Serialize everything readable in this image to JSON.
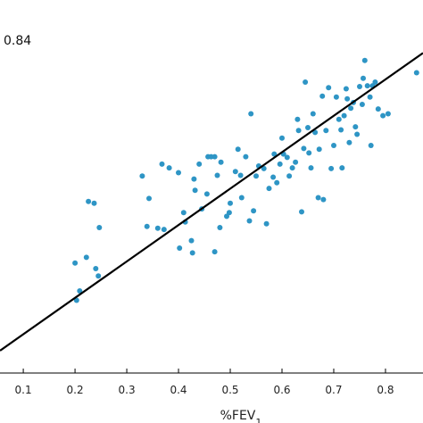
{
  "chart_data": {
    "type": "scatter",
    "xlabel": "%FEV1",
    "annotation": "0.84",
    "xlim": [
      0.055,
      0.8725
    ],
    "ylim": [
      0.0,
      1.0
    ],
    "x_ticks": [
      0.1,
      0.2,
      0.3,
      0.4,
      0.5,
      0.6,
      0.7,
      0.8
    ],
    "point_color": "#2e95c5",
    "line_color": "#000000",
    "fit_line": {
      "x": [
        0.055,
        0.8725
      ],
      "y": [
        0.06,
        0.858
      ]
    },
    "points": [
      {
        "x": 0.203,
        "y": 0.195
      },
      {
        "x": 0.209,
        "y": 0.22
      },
      {
        "x": 0.2,
        "y": 0.295
      },
      {
        "x": 0.222,
        "y": 0.31
      },
      {
        "x": 0.24,
        "y": 0.28
      },
      {
        "x": 0.245,
        "y": 0.26
      },
      {
        "x": 0.226,
        "y": 0.46
      },
      {
        "x": 0.237,
        "y": 0.455
      },
      {
        "x": 0.247,
        "y": 0.39
      },
      {
        "x": 0.33,
        "y": 0.528
      },
      {
        "x": 0.343,
        "y": 0.468
      },
      {
        "x": 0.339,
        "y": 0.393
      },
      {
        "x": 0.36,
        "y": 0.388
      },
      {
        "x": 0.372,
        "y": 0.385
      },
      {
        "x": 0.368,
        "y": 0.56
      },
      {
        "x": 0.382,
        "y": 0.55
      },
      {
        "x": 0.4,
        "y": 0.537
      },
      {
        "x": 0.402,
        "y": 0.335
      },
      {
        "x": 0.41,
        "y": 0.43
      },
      {
        "x": 0.413,
        "y": 0.405
      },
      {
        "x": 0.425,
        "y": 0.355
      },
      {
        "x": 0.427,
        "y": 0.322
      },
      {
        "x": 0.43,
        "y": 0.52
      },
      {
        "x": 0.432,
        "y": 0.49
      },
      {
        "x": 0.44,
        "y": 0.56
      },
      {
        "x": 0.445,
        "y": 0.44
      },
      {
        "x": 0.455,
        "y": 0.48
      },
      {
        "x": 0.457,
        "y": 0.58
      },
      {
        "x": 0.463,
        "y": 0.58
      },
      {
        "x": 0.47,
        "y": 0.58
      },
      {
        "x": 0.47,
        "y": 0.325
      },
      {
        "x": 0.475,
        "y": 0.53
      },
      {
        "x": 0.482,
        "y": 0.565
      },
      {
        "x": 0.48,
        "y": 0.39
      },
      {
        "x": 0.493,
        "y": 0.42
      },
      {
        "x": 0.498,
        "y": 0.43
      },
      {
        "x": 0.5,
        "y": 0.455
      },
      {
        "x": 0.51,
        "y": 0.54
      },
      {
        "x": 0.515,
        "y": 0.6
      },
      {
        "x": 0.52,
        "y": 0.53
      },
      {
        "x": 0.522,
        "y": 0.47
      },
      {
        "x": 0.53,
        "y": 0.58
      },
      {
        "x": 0.537,
        "y": 0.408
      },
      {
        "x": 0.54,
        "y": 0.695
      },
      {
        "x": 0.545,
        "y": 0.435
      },
      {
        "x": 0.55,
        "y": 0.528
      },
      {
        "x": 0.555,
        "y": 0.555
      },
      {
        "x": 0.565,
        "y": 0.548
      },
      {
        "x": 0.57,
        "y": 0.4
      },
      {
        "x": 0.575,
        "y": 0.495
      },
      {
        "x": 0.583,
        "y": 0.525
      },
      {
        "x": 0.585,
        "y": 0.587
      },
      {
        "x": 0.59,
        "y": 0.51
      },
      {
        "x": 0.596,
        "y": 0.56
      },
      {
        "x": 0.6,
        "y": 0.63
      },
      {
        "x": 0.603,
        "y": 0.587
      },
      {
        "x": 0.61,
        "y": 0.578
      },
      {
        "x": 0.614,
        "y": 0.528
      },
      {
        "x": 0.62,
        "y": 0.55
      },
      {
        "x": 0.626,
        "y": 0.565
      },
      {
        "x": 0.63,
        "y": 0.68
      },
      {
        "x": 0.632,
        "y": 0.65
      },
      {
        "x": 0.638,
        "y": 0.432
      },
      {
        "x": 0.642,
        "y": 0.602
      },
      {
        "x": 0.645,
        "y": 0.78
      },
      {
        "x": 0.65,
        "y": 0.658
      },
      {
        "x": 0.652,
        "y": 0.59
      },
      {
        "x": 0.656,
        "y": 0.55
      },
      {
        "x": 0.66,
        "y": 0.695
      },
      {
        "x": 0.664,
        "y": 0.645
      },
      {
        "x": 0.67,
        "y": 0.47
      },
      {
        "x": 0.672,
        "y": 0.6
      },
      {
        "x": 0.678,
        "y": 0.742
      },
      {
        "x": 0.68,
        "y": 0.465
      },
      {
        "x": 0.685,
        "y": 0.65
      },
      {
        "x": 0.69,
        "y": 0.765
      },
      {
        "x": 0.695,
        "y": 0.548
      },
      {
        "x": 0.7,
        "y": 0.61
      },
      {
        "x": 0.705,
        "y": 0.74
      },
      {
        "x": 0.71,
        "y": 0.68
      },
      {
        "x": 0.714,
        "y": 0.652
      },
      {
        "x": 0.716,
        "y": 0.55
      },
      {
        "x": 0.72,
        "y": 0.69
      },
      {
        "x": 0.724,
        "y": 0.762
      },
      {
        "x": 0.726,
        "y": 0.735
      },
      {
        "x": 0.73,
        "y": 0.618
      },
      {
        "x": 0.733,
        "y": 0.71
      },
      {
        "x": 0.738,
        "y": 0.725
      },
      {
        "x": 0.742,
        "y": 0.66
      },
      {
        "x": 0.745,
        "y": 0.64
      },
      {
        "x": 0.75,
        "y": 0.768
      },
      {
        "x": 0.755,
        "y": 0.72
      },
      {
        "x": 0.757,
        "y": 0.79
      },
      {
        "x": 0.76,
        "y": 0.838
      },
      {
        "x": 0.765,
        "y": 0.77
      },
      {
        "x": 0.77,
        "y": 0.74
      },
      {
        "x": 0.772,
        "y": 0.61
      },
      {
        "x": 0.775,
        "y": 0.77
      },
      {
        "x": 0.78,
        "y": 0.78
      },
      {
        "x": 0.786,
        "y": 0.708
      },
      {
        "x": 0.795,
        "y": 0.69
      },
      {
        "x": 0.805,
        "y": 0.695
      },
      {
        "x": 0.86,
        "y": 0.805
      }
    ]
  }
}
